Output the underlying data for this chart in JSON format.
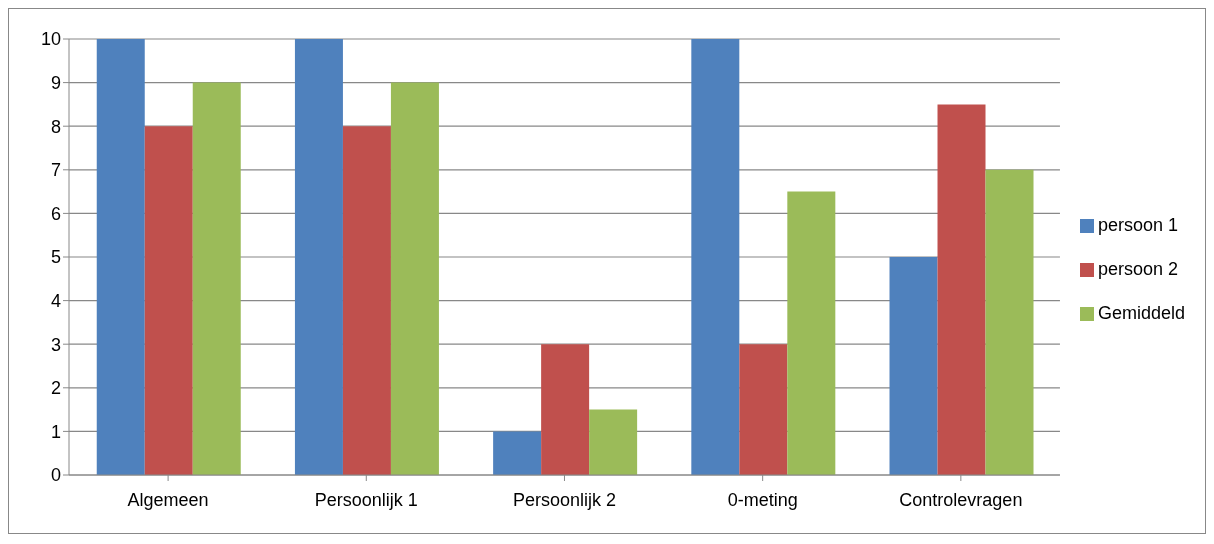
{
  "chart_data": {
    "type": "bar",
    "categories": [
      "Algemeen",
      "Persoonlijk 1",
      "Persoonlijk 2",
      "0-meting",
      "Controlevragen"
    ],
    "series": [
      {
        "name": "persoon 1",
        "color": "#4f81bd",
        "values": [
          10,
          10,
          1,
          10,
          5
        ]
      },
      {
        "name": "persoon 2",
        "color": "#c0504d",
        "values": [
          8,
          8,
          3,
          3,
          8.5
        ]
      },
      {
        "name": "Gemiddeld",
        "color": "#9bbb59",
        "values": [
          9,
          9,
          1.5,
          6.5,
          7
        ]
      }
    ],
    "ylim": [
      0,
      10
    ],
    "yticks": [
      0,
      1,
      2,
      3,
      4,
      5,
      6,
      7,
      8,
      9,
      10
    ],
    "grid": "y",
    "legend": "right"
  }
}
